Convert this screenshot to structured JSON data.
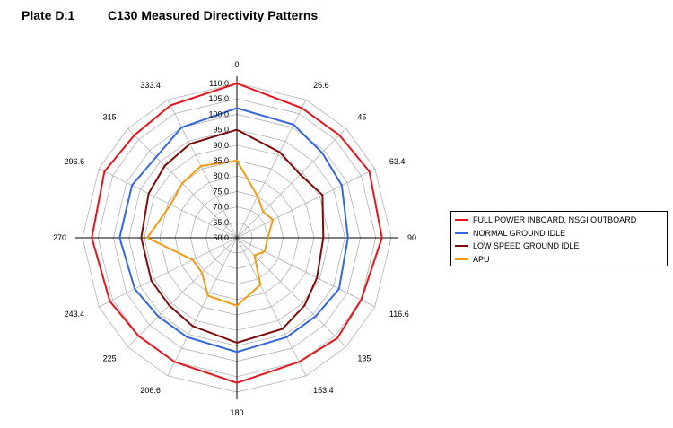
{
  "header": {
    "plate": "Plate D.1",
    "title": "C130 Measured Directivity Patterns"
  },
  "chart_data": {
    "type": "radar",
    "title": "C130 Measured Directivity Patterns",
    "angles": [
      "0",
      "26.6",
      "45",
      "63.4",
      "90",
      "116.6",
      "135",
      "153.4",
      "180",
      "206.6",
      "225",
      "243.4",
      "270",
      "296.6",
      "315",
      "333.4"
    ],
    "angle_degrees": [
      0,
      26.6,
      45,
      63.4,
      90,
      116.6,
      135,
      153.4,
      180,
      206.6,
      225,
      243.4,
      270,
      296.6,
      315,
      333.4
    ],
    "radial_ticks": [
      "60.0",
      "65.0",
      "70.0",
      "75.0",
      "80.0",
      "85.0",
      "90.0",
      "95.0",
      "100.0",
      "105.0",
      "110.0"
    ],
    "rlim": [
      60,
      110
    ],
    "grid": true,
    "legend_position": "right",
    "series": [
      {
        "name": "FULL POWER INBOARD, NSGI OUTBOARD",
        "color": "#e8141b",
        "values": [
          110,
          107,
          107,
          108,
          107,
          105,
          106,
          105,
          107,
          105,
          105,
          106,
          107,
          108,
          107,
          108
        ]
      },
      {
        "name": "NORMAL GROUND IDLE",
        "color": "#3366e0",
        "values": [
          102,
          101,
          99,
          98,
          96,
          97,
          96,
          96,
          97,
          96,
          96,
          97,
          98,
          98,
          97,
          100
        ]
      },
      {
        "name": "LOW SPEED GROUND IDLE",
        "color": "#7f0a0a",
        "values": [
          95,
          91,
          89,
          91,
          88,
          89,
          91,
          93,
          94,
          92,
          91,
          91,
          91,
          92,
          93,
          94
        ]
      },
      {
        "name": "APU",
        "color": "#f39a14",
        "values": [
          85,
          75,
          72,
          73,
          70,
          70,
          68,
          77,
          82,
          81,
          76,
          76,
          89,
          84,
          85,
          86
        ]
      }
    ]
  }
}
